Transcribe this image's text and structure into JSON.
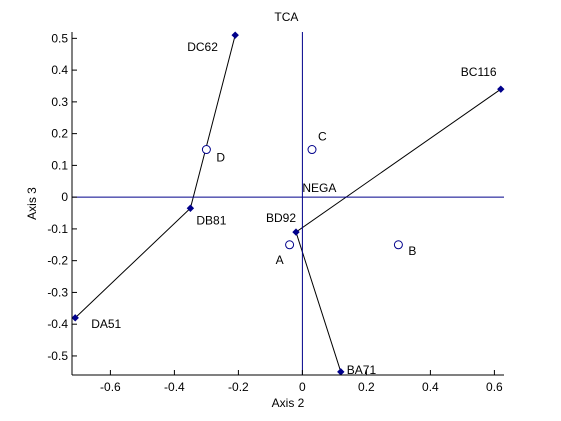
{
  "chart_data": {
    "type": "scatter",
    "title": "",
    "xlabel": "Axis 2",
    "ylabel": "Axis 3",
    "xlim": [
      -0.72,
      0.63
    ],
    "ylim": [
      -0.56,
      0.52
    ],
    "xticks": [
      -0.6,
      -0.4,
      -0.2,
      0,
      0.2,
      0.4,
      0.6
    ],
    "xtick_labels": [
      "-0.6",
      "-0.4",
      "-0.2",
      "0",
      "0.2",
      "0.4",
      "0.6"
    ],
    "yticks": [
      -0.5,
      -0.4,
      -0.3,
      -0.2,
      -0.1,
      0,
      0.1,
      0.2,
      0.3,
      0.4,
      0.5
    ],
    "ytick_labels": [
      "-0.5",
      "-0.4",
      "-0.3",
      "-0.2",
      "-0.1",
      "0",
      "0.1",
      "0.2",
      "0.3",
      "0.4",
      "0.5"
    ],
    "grid": false,
    "axis_lines": {
      "vertical": {
        "x": 0,
        "label": "TCA"
      },
      "horizontal": {
        "y": 0,
        "label": "NEGA"
      }
    },
    "open_points": [
      {
        "label": "A",
        "x": -0.04,
        "y": -0.15
      },
      {
        "label": "B",
        "x": 0.3,
        "y": -0.15
      },
      {
        "label": "C",
        "x": 0.03,
        "y": 0.15
      },
      {
        "label": "D",
        "x": -0.3,
        "y": 0.15
      }
    ],
    "variable_points": [
      {
        "label": "DC62",
        "x": -0.21,
        "y": 0.51
      },
      {
        "label": "DB81",
        "x": -0.35,
        "y": -0.035
      },
      {
        "label": "DA51",
        "x": -0.71,
        "y": -0.38
      },
      {
        "label": "BC116",
        "x": 0.62,
        "y": 0.34
      },
      {
        "label": "BD92",
        "x": -0.02,
        "y": -0.11
      },
      {
        "label": "BA71",
        "x": 0.12,
        "y": -0.55
      }
    ],
    "trajectories": [
      [
        "DC62",
        "DB81",
        "DA51"
      ],
      [
        "BC116",
        "BD92",
        "BA71"
      ]
    ],
    "colors": {
      "axis_lines": "#00008B",
      "points": "#00008B",
      "trajectory": "#000000"
    }
  }
}
